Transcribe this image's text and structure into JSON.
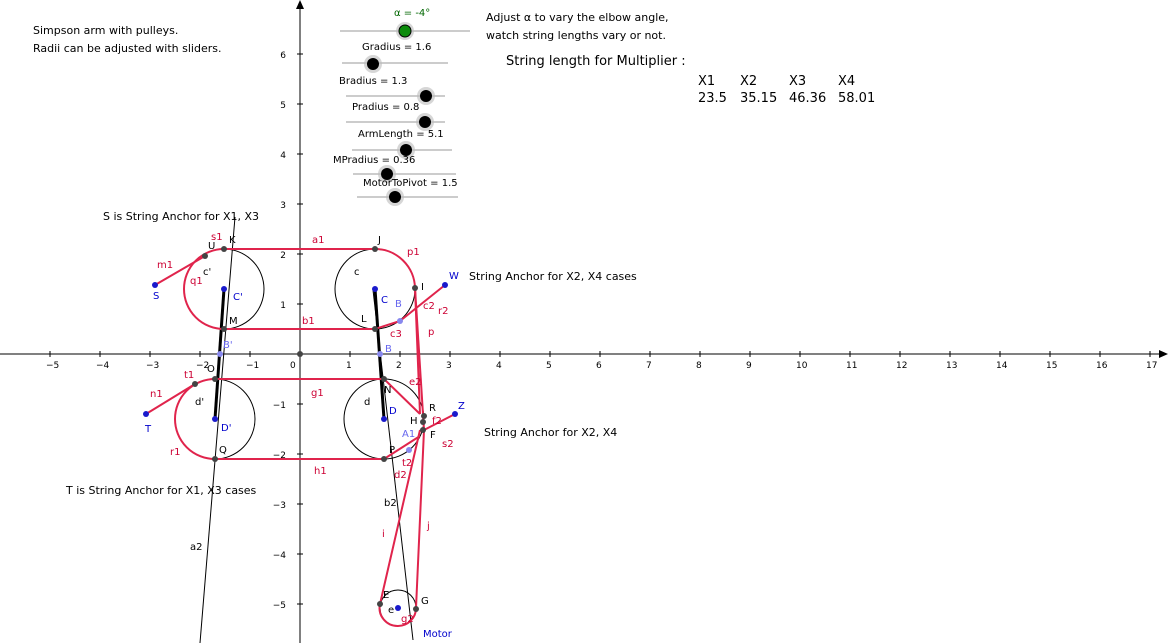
{
  "info": {
    "line1": "Simpson arm with pulleys.",
    "line2": "Radii can be adjusted with sliders.",
    "adjust1": "Adjust α to vary the elbow angle,",
    "adjust2": "watch string lengths vary or not.",
    "string_header": "String length for Multiplier :",
    "s_anchor": "S is String Anchor for X1, X3",
    "t_anchor": "T is String Anchor for X1, X3 cases",
    "w_anchor": "String Anchor for X2, X4 cases",
    "z_anchor": "String Anchor for X2, X4",
    "motor": "Motor"
  },
  "table": {
    "headers": [
      "X1",
      "X2",
      "X3",
      "X4"
    ],
    "values": [
      "23.5",
      "35.15",
      "46.36",
      "58.01"
    ]
  },
  "sliders": [
    {
      "label": "α = -4°",
      "value": -4,
      "min": -90,
      "max": 90,
      "color": "#0a8a0a"
    },
    {
      "label": "Gradius = 1.6",
      "value": 1.6,
      "min": 0,
      "max": 5,
      "color": "#000000"
    },
    {
      "label": "Bradius = 1.3",
      "value": 1.3,
      "min": 0,
      "max": 2,
      "color": "#000000"
    },
    {
      "label": "Pradius = 0.8",
      "value": 0.8,
      "min": 0,
      "max": 1,
      "color": "#000000"
    },
    {
      "label": "ArmLength = 5.1",
      "value": 5.1,
      "min": 0,
      "max": 10,
      "color": "#000000"
    },
    {
      "label": "MPradius = 0.36",
      "value": 0.36,
      "min": 0,
      "max": 1,
      "color": "#000000"
    },
    {
      "label": "MotorToPivot = 1.5",
      "value": 1.5,
      "min": 0,
      "max": 3,
      "color": "#000000"
    }
  ],
  "axes": {
    "x_ticks": [
      "−5",
      "−4",
      "−3",
      "−2",
      "−1",
      "0",
      "1",
      "2",
      "3",
      "4",
      "5",
      "6",
      "7",
      "8",
      "9",
      "10",
      "11",
      "12",
      "13",
      "14",
      "15",
      "16",
      "17"
    ],
    "y_ticks": [
      "6",
      "5",
      "4",
      "3",
      "2",
      "1",
      "−1",
      "−2",
      "−3",
      "−4",
      "−5"
    ]
  },
  "labels": {
    "red": [
      "a1",
      "p1",
      "m1",
      "q1",
      "b1",
      "c3",
      "r2",
      "p",
      "e2",
      "g1",
      "n1",
      "r1",
      "h1",
      "f2",
      "s2",
      "t2",
      "d2",
      "b2",
      "i",
      "j",
      "a2",
      "g2",
      "s1",
      "t1",
      "c2"
    ],
    "black": [
      "J",
      "K",
      "U",
      "c'",
      "M",
      "c",
      "L",
      "I",
      "N",
      "d",
      "O",
      "d'",
      "Q",
      "P",
      "R",
      "H",
      "F",
      "E",
      "G",
      "e"
    ],
    "blue": [
      "S",
      "W",
      "C",
      "C'",
      "T",
      "D",
      "D'",
      "Z",
      "Motor"
    ],
    "lightblue": [
      "B",
      "B'",
      "B",
      "A1"
    ]
  }
}
